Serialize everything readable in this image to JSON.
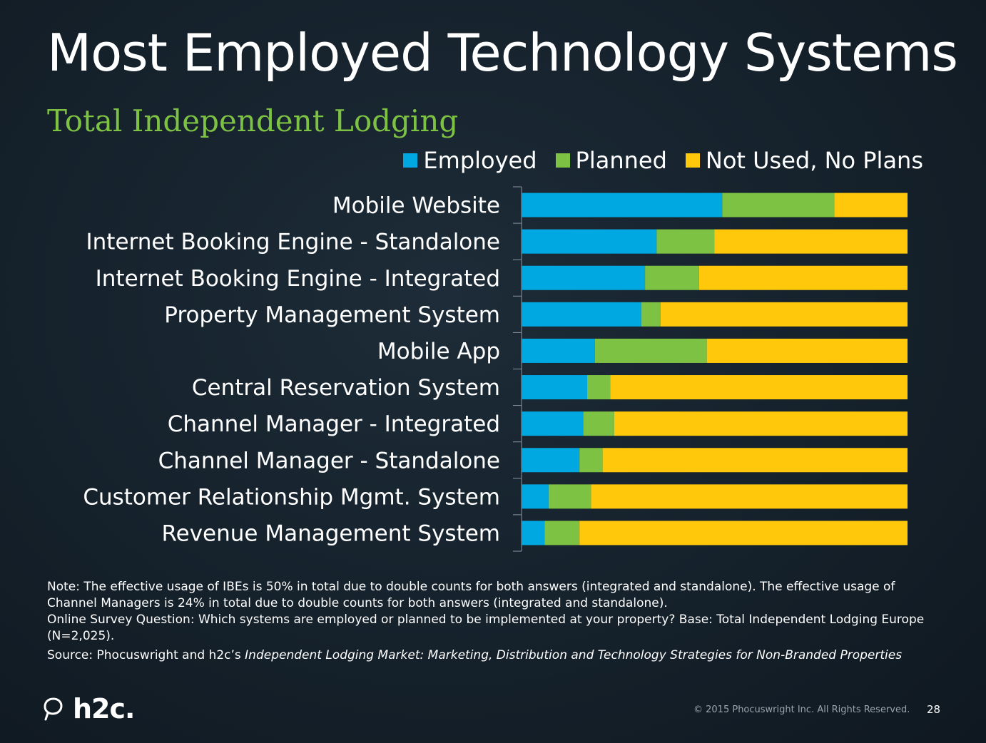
{
  "title": "Most Employed Technology Systems",
  "subtitle": "Total Independent Lodging",
  "colors": {
    "employed": "#00a8e1",
    "planned": "#7dc243",
    "not_used": "#ffc80a"
  },
  "chart_data": {
    "type": "bar",
    "orientation": "horizontal",
    "stacked": true,
    "normalized": true,
    "legend_position": "top-right",
    "categories": [
      "Mobile Website",
      "Internet Booking Engine - Standalone",
      "Internet Booking Engine - Integrated",
      "Property Management System",
      "Mobile App",
      "Central Reservation System",
      "Channel Manager - Integrated",
      "Channel Manager - Standalone",
      "Customer Relationship Mgmt. System",
      "Revenue Management System"
    ],
    "series": [
      {
        "name": "Employed",
        "values": [
          52,
          35,
          32,
          31,
          19,
          17,
          16,
          15,
          7,
          6
        ]
      },
      {
        "name": "Planned",
        "values": [
          29,
          15,
          14,
          5,
          29,
          6,
          8,
          6,
          11,
          9
        ]
      },
      {
        "name": "Not Used, No Plans",
        "values": [
          19,
          50,
          54,
          64,
          52,
          77,
          76,
          79,
          82,
          85
        ]
      }
    ]
  },
  "note_1": "Note: The effective usage of IBEs is 50% in total due to double counts for both answers (integrated and standalone). The effective usage of Channel Managers is 24% in total due to double counts for both answers (integrated and standalone).",
  "note_2": "Online Survey Question: Which systems are employed or planned to be implemented at your property? Base: Total Independent Lodging Europe (N=2,025).",
  "source_prefix": "Source: Phocuswright and h2c’s ",
  "source_title": "Independent Lodging Market: Marketing, Distribution and Technology Strategies for Non-Branded Properties",
  "logo_text": "h2c.",
  "copyright": "© 2015 Phocuswright Inc. All Rights Reserved.",
  "page_number": "28"
}
